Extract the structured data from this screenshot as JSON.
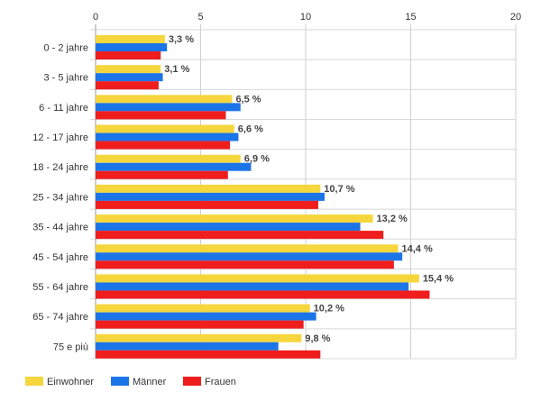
{
  "chart_data": {
    "type": "bar",
    "orientation": "horizontal",
    "categories": [
      "0 - 2 jahre",
      "3 - 5 jahre",
      "6 - 11 jahre",
      "12 - 17 jahre",
      "18 - 24 jahre",
      "25 - 34 jahre",
      "35 - 44 jahre",
      "45 - 54 jahre",
      "55 - 64 jahre",
      "65 - 74 jahre",
      "75 e più"
    ],
    "series": [
      {
        "name": "Einwohner",
        "color": "#f5d63d",
        "values": [
          3.3,
          3.1,
          6.5,
          6.6,
          6.9,
          10.7,
          13.2,
          14.4,
          15.4,
          10.2,
          9.8
        ],
        "labels": [
          "3,3 %",
          "3,1 %",
          "6,5 %",
          "6,6 %",
          "6,9 %",
          "10,7 %",
          "13,2 %",
          "14,4 %",
          "15,4 %",
          "10,2 %",
          "9,8 %"
        ]
      },
      {
        "name": "Männer",
        "color": "#1c75e8",
        "values": [
          3.4,
          3.2,
          6.9,
          6.8,
          7.4,
          10.9,
          12.6,
          14.6,
          14.9,
          10.5,
          8.7
        ]
      },
      {
        "name": "Frauen",
        "color": "#f01d1d",
        "values": [
          3.1,
          3.0,
          6.2,
          6.4,
          6.3,
          10.6,
          13.7,
          14.2,
          15.9,
          9.9,
          10.7
        ]
      }
    ],
    "xlim": [
      0,
      20
    ],
    "xticks": [
      "0",
      "5",
      "10",
      "15",
      "20"
    ],
    "title": "",
    "xlabel": "",
    "ylabel": "",
    "grid": true,
    "legend_position": "bottom-left"
  }
}
